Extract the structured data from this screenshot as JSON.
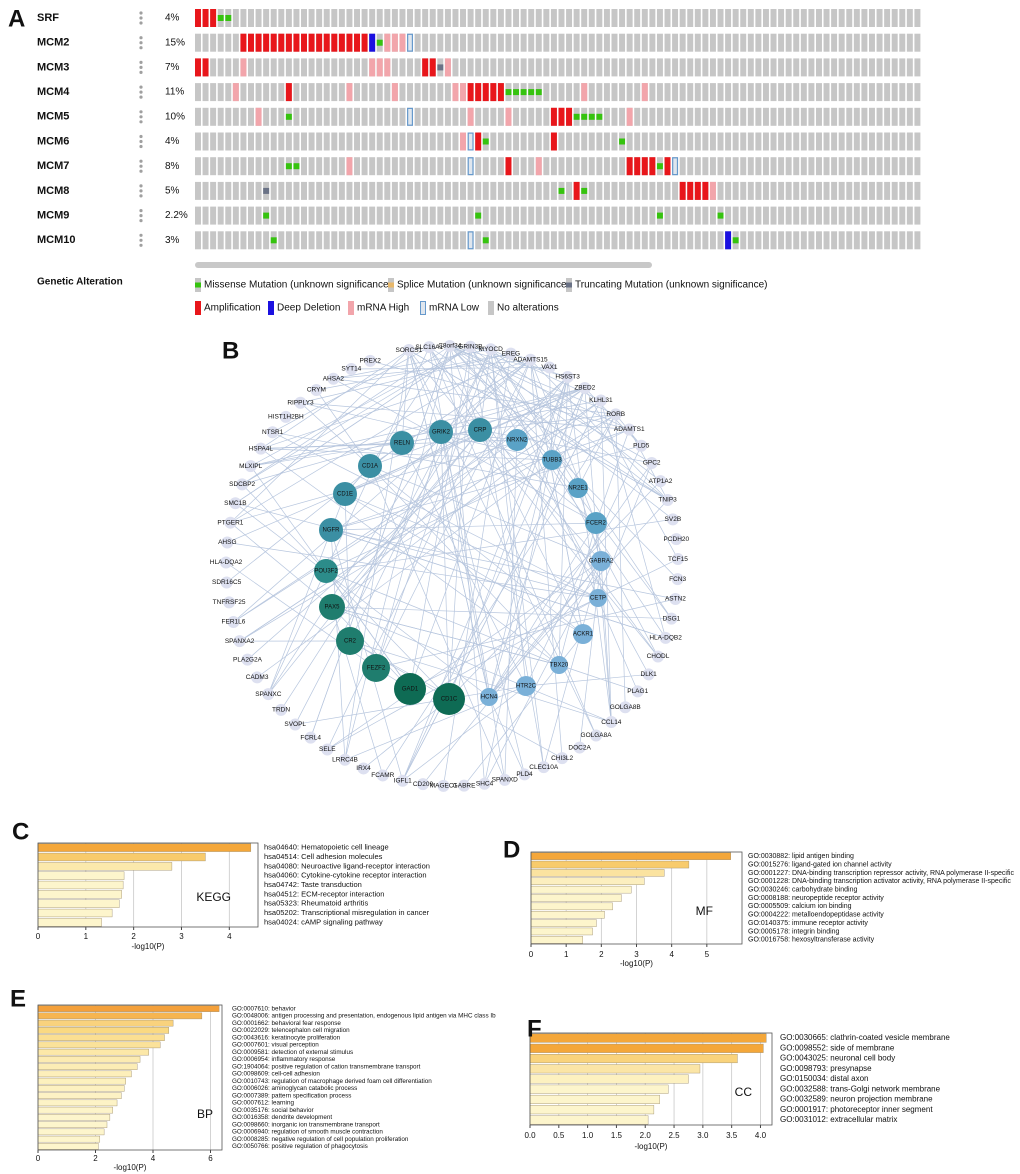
{
  "chart_data": [
    {
      "panel": "A",
      "type": "oncoprint",
      "genes": [
        "SRF",
        "MCM2",
        "MCM3",
        "MCM4",
        "MCM5",
        "MCM6",
        "MCM7",
        "MCM8",
        "MCM9",
        "MCM10"
      ],
      "percent": [
        4,
        15,
        7,
        11,
        10,
        4,
        8,
        5,
        2.2,
        3
      ],
      "value_labels": [
        "4%",
        "15%",
        "7%",
        "11%",
        "10%",
        "4%",
        "8%",
        "5%",
        "2.2%",
        "3%"
      ],
      "samples": 96,
      "alterations": [
        [
          [
            0,
            3
          ],
          [
            1,
            3
          ],
          [
            2,
            3
          ],
          [
            3,
            0
          ],
          [
            4,
            0
          ]
        ],
        [
          [
            6,
            3
          ],
          [
            7,
            3
          ],
          [
            8,
            3
          ],
          [
            9,
            3
          ],
          [
            10,
            3
          ],
          [
            11,
            3
          ],
          [
            12,
            3
          ],
          [
            13,
            3
          ],
          [
            14,
            3
          ],
          [
            15,
            3
          ],
          [
            16,
            3
          ],
          [
            17,
            3
          ],
          [
            18,
            3
          ],
          [
            19,
            3
          ],
          [
            20,
            3
          ],
          [
            21,
            3
          ],
          [
            22,
            3
          ],
          [
            23,
            4
          ],
          [
            24,
            0
          ],
          [
            25,
            5
          ],
          [
            26,
            5
          ],
          [
            27,
            5
          ],
          [
            28,
            6
          ]
        ],
        [
          [
            0,
            3
          ],
          [
            1,
            3
          ],
          [
            6,
            5
          ],
          [
            23,
            5
          ],
          [
            24,
            5
          ],
          [
            25,
            5
          ],
          [
            30,
            3
          ],
          [
            31,
            3
          ],
          [
            32,
            2
          ],
          [
            33,
            5
          ]
        ],
        [
          [
            5,
            5
          ],
          [
            12,
            3
          ],
          [
            20,
            5
          ],
          [
            26,
            5
          ],
          [
            34,
            5
          ],
          [
            35,
            5
          ],
          [
            36,
            3
          ],
          [
            37,
            3
          ],
          [
            38,
            3
          ],
          [
            39,
            3
          ],
          [
            40,
            3
          ],
          [
            41,
            0
          ],
          [
            42,
            0
          ],
          [
            43,
            0
          ],
          [
            44,
            0
          ],
          [
            45,
            0
          ],
          [
            51,
            5
          ],
          [
            59,
            5
          ]
        ],
        [
          [
            8,
            5
          ],
          [
            12,
            0
          ],
          [
            28,
            6
          ],
          [
            36,
            5
          ],
          [
            41,
            5
          ],
          [
            47,
            3
          ],
          [
            48,
            3
          ],
          [
            49,
            3
          ],
          [
            50,
            0
          ],
          [
            51,
            0
          ],
          [
            52,
            0
          ],
          [
            53,
            0
          ],
          [
            57,
            5
          ]
        ],
        [
          [
            35,
            5
          ],
          [
            36,
            6
          ],
          [
            37,
            3
          ],
          [
            38,
            0
          ],
          [
            47,
            3
          ],
          [
            56,
            0
          ]
        ],
        [
          [
            12,
            0
          ],
          [
            13,
            0
          ],
          [
            20,
            5
          ],
          [
            36,
            6
          ],
          [
            41,
            3
          ],
          [
            45,
            5
          ],
          [
            57,
            3
          ],
          [
            58,
            3
          ],
          [
            59,
            3
          ],
          [
            60,
            3
          ],
          [
            61,
            0
          ],
          [
            62,
            3
          ],
          [
            63,
            6
          ]
        ],
        [
          [
            9,
            2
          ],
          [
            48,
            0
          ],
          [
            50,
            3
          ],
          [
            51,
            0
          ],
          [
            64,
            3
          ],
          [
            65,
            3
          ],
          [
            66,
            3
          ],
          [
            67,
            3
          ],
          [
            68,
            5
          ]
        ],
        [
          [
            9,
            0
          ],
          [
            37,
            0
          ],
          [
            61,
            0
          ],
          [
            69,
            0
          ]
        ],
        [
          [
            10,
            0
          ],
          [
            36,
            6
          ],
          [
            38,
            0
          ],
          [
            70,
            4
          ],
          [
            71,
            0
          ]
        ]
      ],
      "legend_title": "Genetic Alteration",
      "legend": [
        {
          "name": "Missense Mutation (unknown significance)",
          "color": "#36c30f"
        },
        {
          "name": "Splice Mutation (unknown significance)",
          "color": "#e8b86b"
        },
        {
          "name": "Truncating Mutation (unknown significance)",
          "color": "#6a7286"
        },
        {
          "name": "Amplification",
          "color": "#e8161b"
        },
        {
          "name": "Deep Deletion",
          "color": "#1b10e0"
        },
        {
          "name": "mRNA High",
          "color": "#f2a5ab"
        },
        {
          "name": "mRNA Low",
          "color": "#6699cc"
        },
        {
          "name": "No alterations",
          "color": "#c6c6c6"
        }
      ]
    },
    {
      "panel": "B",
      "type": "network",
      "hubs": [
        {
          "label": "RELN",
          "color": "#3b8fa3"
        },
        {
          "label": "GRIK2",
          "color": "#3b8fa3"
        },
        {
          "label": "CRP",
          "color": "#3b8fa3"
        },
        {
          "label": "NRXN2",
          "color": "#5aa2c6"
        },
        {
          "label": "TUBB3",
          "color": "#5aa2c6"
        },
        {
          "label": "NR2E1",
          "color": "#5aa2c6"
        },
        {
          "label": "FCER2",
          "color": "#5aa2c6"
        },
        {
          "label": "GABRA2",
          "color": "#7ab0d8"
        },
        {
          "label": "CETP",
          "color": "#7ab0d8"
        },
        {
          "label": "ACKR1",
          "color": "#7ab0d8"
        },
        {
          "label": "TBX20",
          "color": "#7ab0d8"
        },
        {
          "label": "HTR2C",
          "color": "#7ab0d8"
        },
        {
          "label": "HCN4",
          "color": "#7ab0d8"
        },
        {
          "label": "CD1C",
          "color": "#0e6b54"
        },
        {
          "label": "GAD1",
          "color": "#0e6b54"
        },
        {
          "label": "FEZF2",
          "color": "#1f7d6e"
        },
        {
          "label": "CR2",
          "color": "#1f7d6e"
        },
        {
          "label": "PAX5",
          "color": "#1f7d6e"
        },
        {
          "label": "POU3F2",
          "color": "#2c8c8a"
        },
        {
          "label": "NGFR",
          "color": "#3b8fa3"
        },
        {
          "label": "CD1E",
          "color": "#3b8fa3"
        },
        {
          "label": "CD1A",
          "color": "#3b8fa3"
        }
      ],
      "others": [
        "SORCS1",
        "SLC16A1",
        "C8orf34",
        "GRIN3B",
        "MYOCD",
        "EREG",
        "ADAMTS15",
        "VAX1",
        "HS6ST3",
        "ZBED2",
        "KLHL31",
        "RORB",
        "ADAMTS1",
        "PLD5",
        "GPC2",
        "ATP1A2",
        "TNIP3",
        "SV2B",
        "PCDH20",
        "TCF15",
        "FCN3",
        "ASTN2",
        "DSG1",
        "HLA-DQB2",
        "CHODL",
        "DLK1",
        "PLAG1",
        "GOLGA8B",
        "CCL14",
        "GOLGA8A",
        "DOC2A",
        "CHI3L2",
        "CLEC10A",
        "PLD4",
        "SPANXD",
        "SHC4",
        "GABRE",
        "MAGEC1",
        "CD209",
        "IGFL1",
        "FCAMR",
        "IRX4",
        "LRRC4B",
        "SELE",
        "FCRL4",
        "SVOPL",
        "TRDN",
        "SPANXC",
        "CADM3",
        "PLA2G2A",
        "SPANXA2",
        "FER1L6",
        "TNFRSF25",
        "SDR16C5",
        "HLA-DQA2",
        "AHSG",
        "PTGER1",
        "SMC1B",
        "SDCBP2",
        "MLXIPL",
        "HSPA4L",
        "NTSR1",
        "HIST1H2BH",
        "RIPPLY3",
        "CRYM",
        "AHSA2",
        "SYT14",
        "PREX2"
      ],
      "other_color": "#dde0f0",
      "edge_color": "#b7c6de"
    },
    {
      "panel": "C",
      "type": "barh",
      "label": "KEGG",
      "categories": [
        "hsa04640: Hematopoietic cell lineage",
        "hsa04514: Cell adhesion molecules",
        "hsa04080: Neuroactive ligand-receptor interaction",
        "hsa04060: Cytokine-cytokine receptor interaction",
        "hsa04742: Taste transduction",
        "hsa04512: ECM-receptor interaction",
        "hsa05323: Rheumatoid arthritis",
        "hsa05202: Transcriptional misregulation in cancer",
        "hsa04024: cAMP signaling pathway"
      ],
      "values": [
        4.45,
        3.5,
        2.8,
        1.8,
        1.78,
        1.75,
        1.7,
        1.55,
        1.33
      ],
      "colors": [
        "#f4a73a",
        "#f8cb6c",
        "#fbe9ac",
        "#fdf5cc",
        "#fdf5cc",
        "#fdf5cc",
        "#fdf5cc",
        "#fdf5cc",
        "#fdf5cc"
      ],
      "xlim": [
        0,
        4.6
      ],
      "xticks": [
        0,
        1,
        2,
        3,
        4
      ],
      "xlabel": "-log10(P)"
    },
    {
      "panel": "D",
      "type": "barh",
      "label": "MF",
      "categories": [
        "GO:0030882: lipid antigen binding",
        "GO:0015276: ligand-gated ion channel activity",
        "GO:0001227: DNA-binding transcription repressor activity, RNA polymerase II-specific",
        "GO:0001228: DNA-binding transcription activator activity, RNA polymerase II-specific",
        "GO:0030246: carbohydrate binding",
        "GO:0008188: neuropeptide receptor activity",
        "GO:0005509: calcium ion binding",
        "GO:0004222: metalloendopeptidase activity",
        "GO:0140375: immune receptor activity",
        "GO:0005178: integrin binding",
        "GO:0016758: hexosyltransferase activity"
      ],
      "values": [
        5.68,
        4.49,
        3.79,
        3.22,
        2.85,
        2.57,
        2.32,
        2.09,
        1.86,
        1.75,
        1.47
      ],
      "colors": [
        "#f4a73a",
        "#f8cb6c",
        "#fbe3a0",
        "#fcefbf",
        "#fdf5cc",
        "#fdf5cc",
        "#fdf5cc",
        "#fdf5cc",
        "#fdf5cc",
        "#fdf5cc",
        "#fdf5cc"
      ],
      "xlim": [
        0,
        6
      ],
      "xticks": [
        0,
        1,
        2,
        3,
        4,
        5
      ],
      "xlabel": "-log10(P)"
    },
    {
      "panel": "E",
      "type": "barh",
      "label": "BP",
      "categories": [
        "GO:0007610: behavior",
        "GO:0048006: antigen processing and presentation, endogenous lipid antigen via MHC class Ib",
        "GO:0001662: behavioral fear response",
        "GO:0022029: telencephalon cell migration",
        "GO:0043616: keratinocyte proliferation",
        "GO:0007601: visual perception",
        "GO:0009581: detection of external stimulus",
        "GO:0006954: inflammatory response",
        "GO:1904064: positive regulation of cation transmembrane transport",
        "GO:0098609: cell-cell adhesion",
        "GO:0010743: regulation of macrophage derived foam cell differentiation",
        "GO:0006026: aminoglycan catabolic process",
        "GO:0007389: pattern specification process",
        "GO:0007612: learning",
        "GO:0035176: social behavior",
        "GO:0016358: dendrite development",
        "GO:0098660: inorganic ion transmembrane transport",
        "GO:0006940: regulation of smooth muscle contraction",
        "GO:0008285: negative regulation of cell population proliferation",
        "GO:0050766: positive regulation of phagocytosis"
      ],
      "values": [
        6.3,
        5.7,
        4.7,
        4.55,
        4.4,
        4.25,
        3.85,
        3.55,
        3.45,
        3.25,
        3.05,
        3.0,
        2.9,
        2.75,
        2.6,
        2.5,
        2.4,
        2.3,
        2.15,
        2.1
      ],
      "colors": [
        "#f4a03a",
        "#f6b550",
        "#f9d27d",
        "#fad982",
        "#fbdf92",
        "#fbe29a",
        "#fce8a8",
        "#fcebb1",
        "#fcedb5",
        "#fdefba",
        "#fdf1be",
        "#fdf1c0",
        "#fdf2c4",
        "#fdf3c6",
        "#fdf4c9",
        "#fdf5cc",
        "#fdf5cc",
        "#fdf5cc",
        "#fdf5cc",
        "#fdf5cc"
      ],
      "xlim": [
        0,
        6.4
      ],
      "xticks": [
        0,
        2,
        4,
        6
      ],
      "xlabel": "-log10(P)"
    },
    {
      "panel": "F",
      "type": "barh",
      "label": "CC",
      "categories": [
        "GO:0030665: clathrin-coated vesicle membrane",
        "GO:0098552: side of membrane",
        "GO:0043025: neuronal cell body",
        "GO:0098793: presynapse",
        "GO:0150034: distal axon",
        "GO:0032588: trans-Golgi network membrane",
        "GO:0032589: neuron projection membrane",
        "GO:0001917: photoreceptor inner segment",
        "GO:0031012: extracellular matrix"
      ],
      "values": [
        4.1,
        4.05,
        3.6,
        2.95,
        2.75,
        2.4,
        2.25,
        2.15,
        2.05
      ],
      "colors": [
        "#f4a73a",
        "#f4a73a",
        "#f9d37c",
        "#fbe5a6",
        "#fdf1c0",
        "#fdf5cc",
        "#fdf5cc",
        "#fdf5cc",
        "#fdf5cc"
      ],
      "xlim": [
        0,
        4.2
      ],
      "xticks": [
        {
          "value": 0,
          "label": "0.0"
        },
        {
          "value": 0.5,
          "label": "0.5"
        },
        {
          "value": 1,
          "label": "1.0"
        },
        {
          "value": 1.5,
          "label": "1.5"
        },
        {
          "value": 2,
          "label": "2.0"
        },
        {
          "value": 2.5,
          "label": "2.5"
        },
        {
          "value": 3,
          "label": "3.0"
        },
        {
          "value": 3.5,
          "label": "3.5"
        },
        {
          "value": 4,
          "label": "4.0"
        }
      ],
      "xlabel": "-log10(P)"
    }
  ]
}
